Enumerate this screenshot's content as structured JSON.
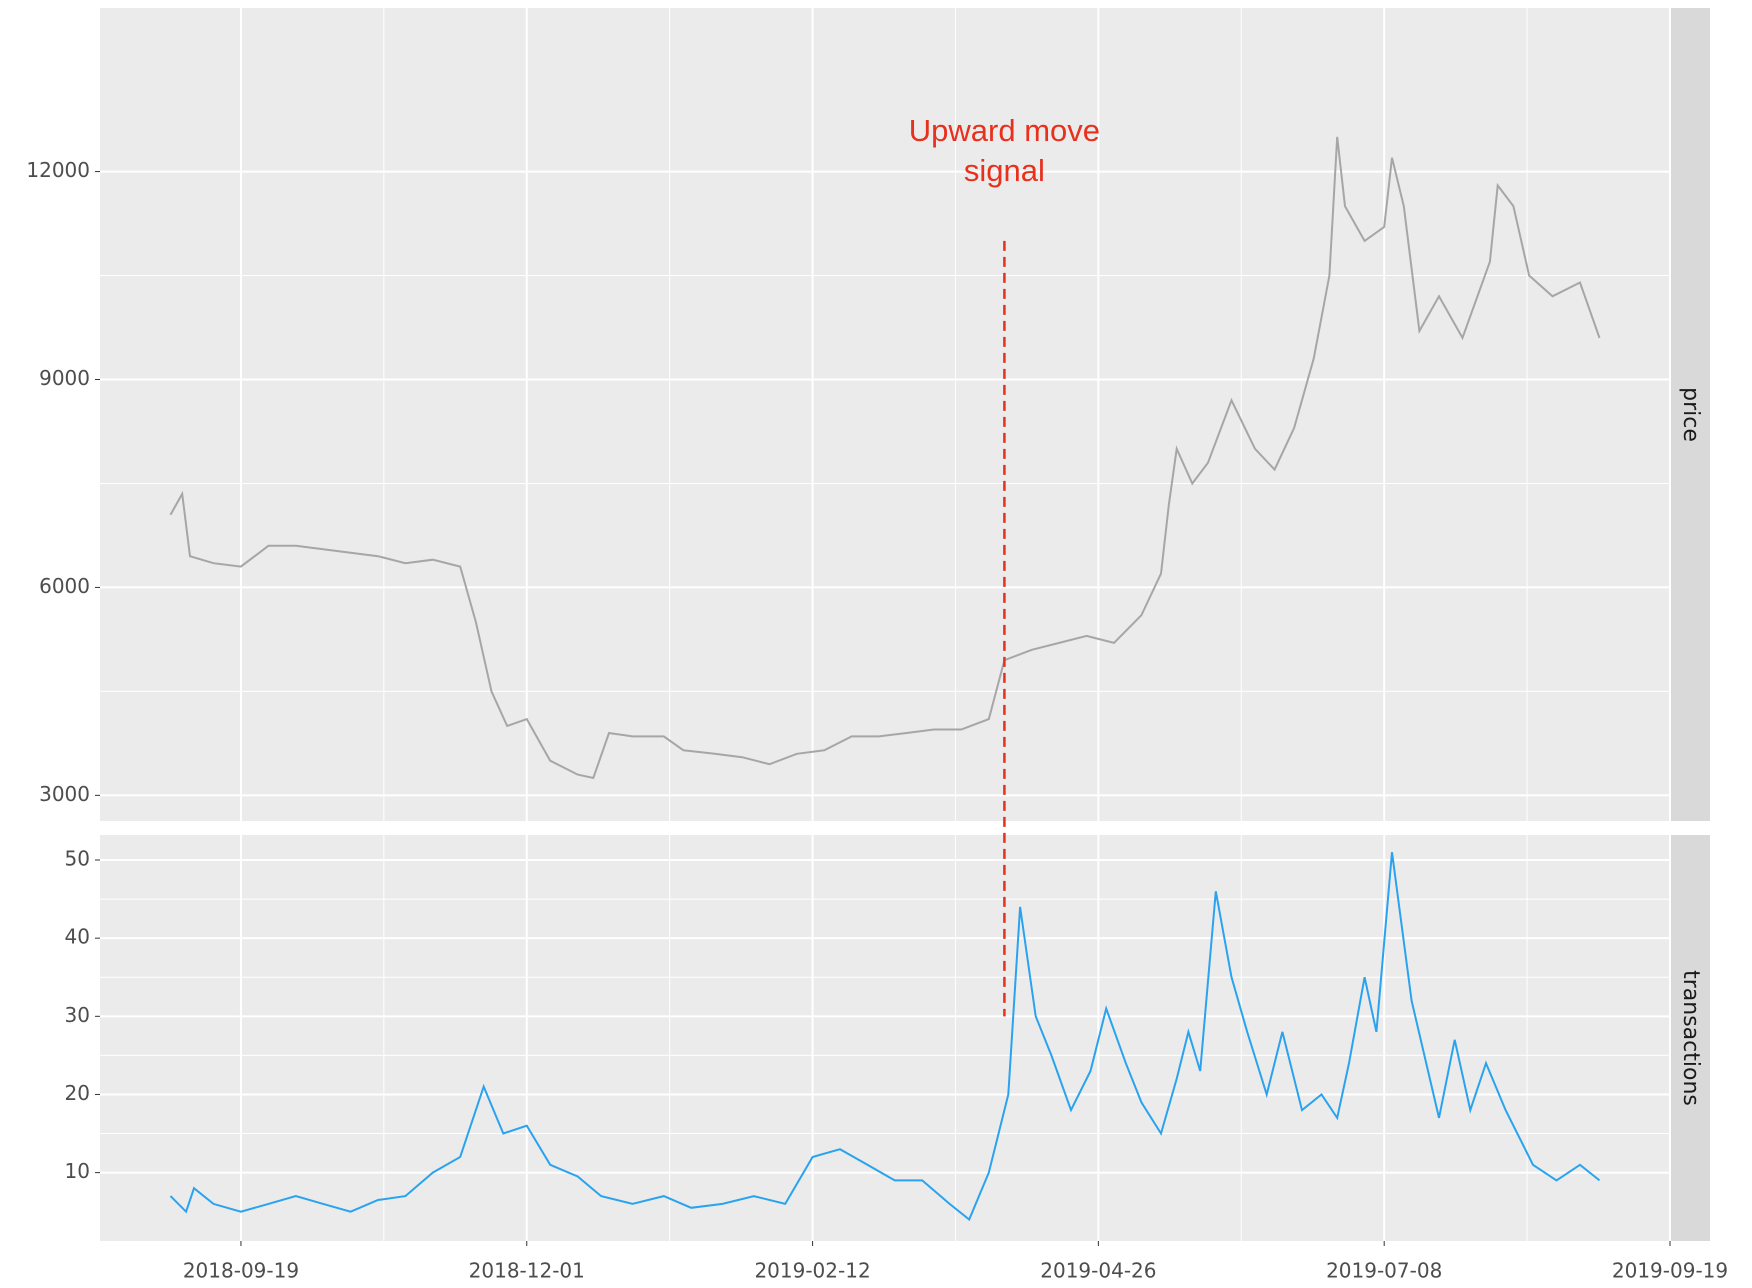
{
  "chart_data": [
    {
      "type": "line",
      "strip": "price",
      "color": "#a6a6a6",
      "xlim": [
        "2018-08-14",
        "2019-09-19"
      ],
      "xticks": [
        "2018-09-19",
        "2018-12-01",
        "2019-02-12",
        "2019-04-26",
        "2019-07-08",
        "2019-09-19"
      ],
      "ylim": [
        2630,
        14360
      ],
      "yticks": [
        3000,
        6000,
        9000,
        12000
      ],
      "grid": true,
      "annotation": {
        "text": "Upward move signal",
        "x": "2019-04-02",
        "y": 11000,
        "y2": 30,
        "color": "#e8301c"
      },
      "x": [
        "2018-09-01",
        "2018-09-04",
        "2018-09-06",
        "2018-09-12",
        "2018-09-19",
        "2018-09-26",
        "2018-10-03",
        "2018-10-10",
        "2018-10-17",
        "2018-10-24",
        "2018-10-31",
        "2018-11-07",
        "2018-11-14",
        "2018-11-18",
        "2018-11-22",
        "2018-11-26",
        "2018-12-01",
        "2018-12-07",
        "2018-12-14",
        "2018-12-18",
        "2018-12-22",
        "2018-12-28",
        "2019-01-05",
        "2019-01-10",
        "2019-01-18",
        "2019-01-25",
        "2019-02-01",
        "2019-02-08",
        "2019-02-15",
        "2019-02-22",
        "2019-03-01",
        "2019-03-08",
        "2019-03-15",
        "2019-03-22",
        "2019-03-29",
        "2019-04-02",
        "2019-04-09",
        "2019-04-16",
        "2019-04-23",
        "2019-04-30",
        "2019-05-07",
        "2019-05-12",
        "2019-05-14",
        "2019-05-16",
        "2019-05-20",
        "2019-05-24",
        "2019-05-30",
        "2019-06-05",
        "2019-06-10",
        "2019-06-15",
        "2019-06-20",
        "2019-06-24",
        "2019-06-26",
        "2019-06-28",
        "2019-07-03",
        "2019-07-08",
        "2019-07-10",
        "2019-07-13",
        "2019-07-17",
        "2019-07-22",
        "2019-07-28",
        "2019-08-04",
        "2019-08-06",
        "2019-08-10",
        "2019-08-14",
        "2019-08-20",
        "2019-08-27",
        "2019-09-01"
      ],
      "values": [
        7050,
        7350,
        6450,
        6350,
        6300,
        6600,
        6600,
        6550,
        6500,
        6450,
        6350,
        6400,
        6300,
        5500,
        4500,
        4000,
        4100,
        3500,
        3300,
        3250,
        3900,
        3850,
        3850,
        3650,
        3600,
        3550,
        3450,
        3600,
        3650,
        3850,
        3850,
        3900,
        3950,
        3950,
        4100,
        4950,
        5100,
        5200,
        5300,
        5200,
        5600,
        6200,
        7200,
        8000,
        7500,
        7800,
        8700,
        8000,
        7700,
        8300,
        9300,
        10500,
        12500,
        11500,
        11000,
        11200,
        12200,
        11500,
        9700,
        10200,
        9600,
        10700,
        11800,
        11500,
        10500,
        10200,
        10400,
        9600
      ]
    },
    {
      "type": "line",
      "strip": "transactions",
      "color": "#29a3ef",
      "xlim": [
        "2018-08-14",
        "2019-09-19"
      ],
      "xticks": [
        "2018-09-19",
        "2018-12-01",
        "2019-02-12",
        "2019-04-26",
        "2019-07-08",
        "2019-09-19"
      ],
      "ylim": [
        1.25,
        53.2
      ],
      "yticks": [
        10,
        20,
        30,
        40,
        50
      ],
      "grid": true,
      "x": [
        "2018-09-01",
        "2018-09-05",
        "2018-09-07",
        "2018-09-12",
        "2018-09-19",
        "2018-09-26",
        "2018-10-03",
        "2018-10-10",
        "2018-10-17",
        "2018-10-24",
        "2018-10-31",
        "2018-11-07",
        "2018-11-14",
        "2018-11-20",
        "2018-11-25",
        "2018-12-01",
        "2018-12-07",
        "2018-12-14",
        "2018-12-20",
        "2018-12-28",
        "2019-01-05",
        "2019-01-12",
        "2019-01-20",
        "2019-01-28",
        "2019-02-05",
        "2019-02-12",
        "2019-02-19",
        "2019-02-26",
        "2019-03-05",
        "2019-03-12",
        "2019-03-19",
        "2019-03-24",
        "2019-03-29",
        "2019-04-03",
        "2019-04-06",
        "2019-04-10",
        "2019-04-14",
        "2019-04-19",
        "2019-04-24",
        "2019-04-28",
        "2019-05-03",
        "2019-05-07",
        "2019-05-12",
        "2019-05-16",
        "2019-05-19",
        "2019-05-22",
        "2019-05-26",
        "2019-05-30",
        "2019-06-03",
        "2019-06-08",
        "2019-06-12",
        "2019-06-17",
        "2019-06-22",
        "2019-06-26",
        "2019-06-29",
        "2019-07-03",
        "2019-07-06",
        "2019-07-10",
        "2019-07-15",
        "2019-07-22",
        "2019-07-26",
        "2019-07-30",
        "2019-08-03",
        "2019-08-08",
        "2019-08-15",
        "2019-08-21",
        "2019-08-27",
        "2019-09-01"
      ],
      "values": [
        7,
        5,
        8,
        6,
        5,
        6,
        7,
        6,
        5,
        6.5,
        7,
        10,
        12,
        21,
        15,
        16,
        11,
        9.5,
        7,
        6,
        7,
        5.5,
        6,
        7,
        6,
        12,
        13,
        11,
        9,
        9,
        6,
        4,
        10,
        20,
        44,
        30,
        25,
        18,
        23,
        31,
        24,
        19,
        15,
        22,
        28,
        23,
        46,
        35,
        28,
        20,
        28,
        18,
        20,
        17,
        24,
        35,
        28,
        51,
        32,
        17,
        27,
        18,
        24,
        18,
        11,
        9,
        11,
        9
      ]
    }
  ]
}
